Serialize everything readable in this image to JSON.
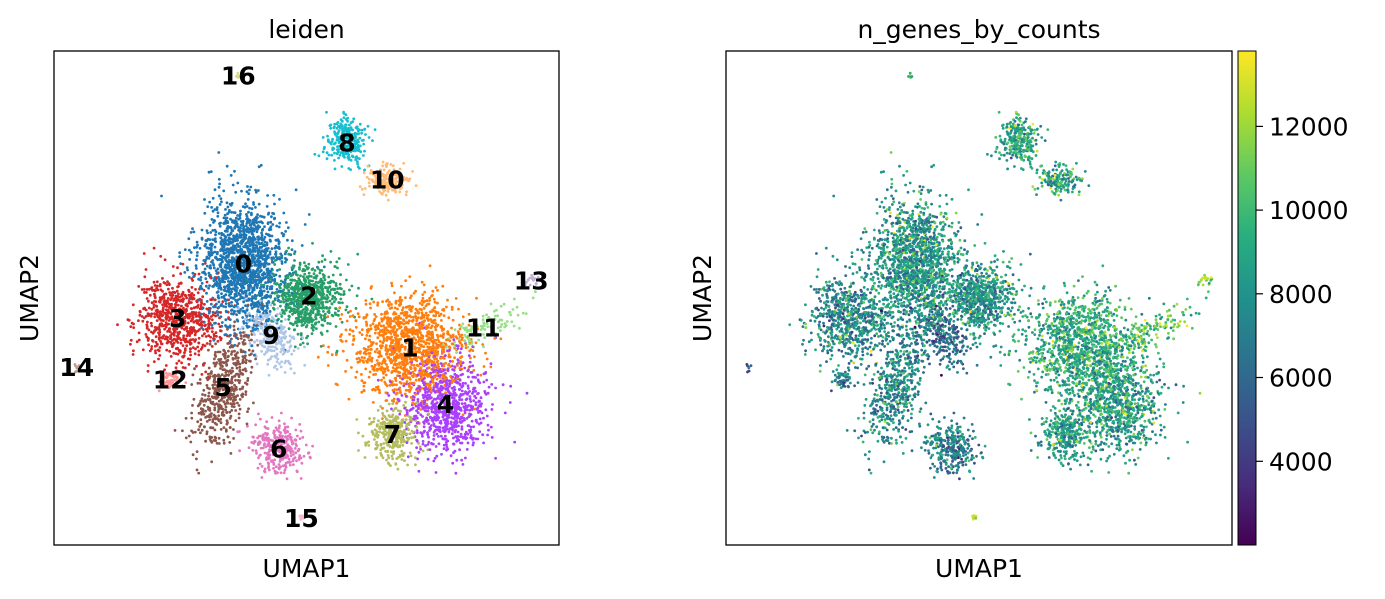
{
  "chart_data": [
    {
      "type": "scatter",
      "title": "leiden",
      "xlabel": "UMAP1",
      "ylabel": "UMAP2",
      "xlim": [
        0,
        100
      ],
      "ylim": [
        0,
        100
      ],
      "grid": false,
      "legend": "on data",
      "clusters": [
        {
          "label": "0",
          "color": "#1f77b4",
          "x": 37.5,
          "y": 57.0,
          "size": 1500
        },
        {
          "label": "1",
          "color": "#ff7f0e",
          "x": 70.5,
          "y": 40.0,
          "size": 1200
        },
        {
          "label": "2",
          "color": "#279e68",
          "x": 50.5,
          "y": 50.5,
          "size": 700
        },
        {
          "label": "3",
          "color": "#d62728",
          "x": 24.5,
          "y": 46.0,
          "size": 700
        },
        {
          "label": "4",
          "color": "#aa40fc",
          "x": 77.5,
          "y": 28.5,
          "size": 800
        },
        {
          "label": "5",
          "color": "#8c564b",
          "x": 33.5,
          "y": 32.0,
          "size": 500
        },
        {
          "label": "6",
          "color": "#e377c2",
          "x": 44.5,
          "y": 19.5,
          "size": 320
        },
        {
          "label": "7",
          "color": "#b5bd61",
          "x": 67.0,
          "y": 22.5,
          "size": 320
        },
        {
          "label": "8",
          "color": "#17becf",
          "x": 58.0,
          "y": 81.5,
          "size": 260
        },
        {
          "label": "9",
          "color": "#aec7e8",
          "x": 43.0,
          "y": 42.5,
          "size": 260
        },
        {
          "label": "10",
          "color": "#ffbb78",
          "x": 66.0,
          "y": 74.0,
          "size": 170
        },
        {
          "label": "11",
          "color": "#98df8a",
          "x": 85.0,
          "y": 44.0,
          "size": 110
        },
        {
          "label": "12",
          "color": "#ff9896",
          "x": 23.0,
          "y": 33.5,
          "size": 50
        },
        {
          "label": "13",
          "color": "#c5b0d5",
          "x": 94.5,
          "y": 53.5,
          "size": 20
        },
        {
          "label": "14",
          "color": "#c49c94",
          "x": 4.5,
          "y": 36.0,
          "size": 8
        },
        {
          "label": "15",
          "color": "#f7b6d2",
          "x": 49.0,
          "y": 5.5,
          "size": 8
        },
        {
          "label": "16",
          "color": "#dbdb8d",
          "x": 36.5,
          "y": 95.0,
          "size": 8
        }
      ]
    },
    {
      "type": "scatter",
      "title": "n_genes_by_counts",
      "xlabel": "UMAP1",
      "ylabel": "UMAP2",
      "xlim": [
        0,
        100
      ],
      "ylim": [
        0,
        100
      ],
      "grid": false,
      "colormap": "viridis",
      "colorbar": {
        "min": 2000,
        "max": 13800,
        "ticks": [
          4000,
          6000,
          8000,
          10000,
          12000
        ],
        "tick_labels": [
          "4000",
          "6000",
          "8000",
          "10000",
          "12000"
        ]
      }
    }
  ]
}
